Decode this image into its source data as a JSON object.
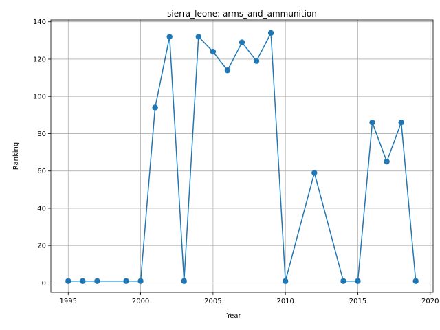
{
  "chart_data": {
    "type": "line",
    "title": "sierra_leone: arms_and_ammunition",
    "xlabel": "Year",
    "ylabel": "Ranking",
    "xlim": [
      1993.8,
      2020.2
    ],
    "ylim": [
      -5,
      141
    ],
    "xticks": [
      1995,
      2000,
      2005,
      2010,
      2015,
      2020
    ],
    "yticks": [
      0,
      20,
      40,
      60,
      80,
      100,
      120,
      140
    ],
    "grid": true,
    "color": "#1f77b4",
    "marker": "circle",
    "series": [
      {
        "x": [
          1995,
          1996,
          1997,
          1999,
          2000,
          2001,
          2002,
          2003,
          2004,
          2005,
          2006,
          2007,
          2008,
          2009,
          2010,
          2012,
          2014,
          2015,
          2016,
          2017,
          2018,
          2019
        ],
        "values": [
          1,
          1,
          1,
          1,
          1,
          94,
          132,
          1,
          132,
          124,
          114,
          129,
          119,
          134,
          1,
          59,
          1,
          1,
          86,
          65,
          86,
          1
        ]
      }
    ]
  }
}
